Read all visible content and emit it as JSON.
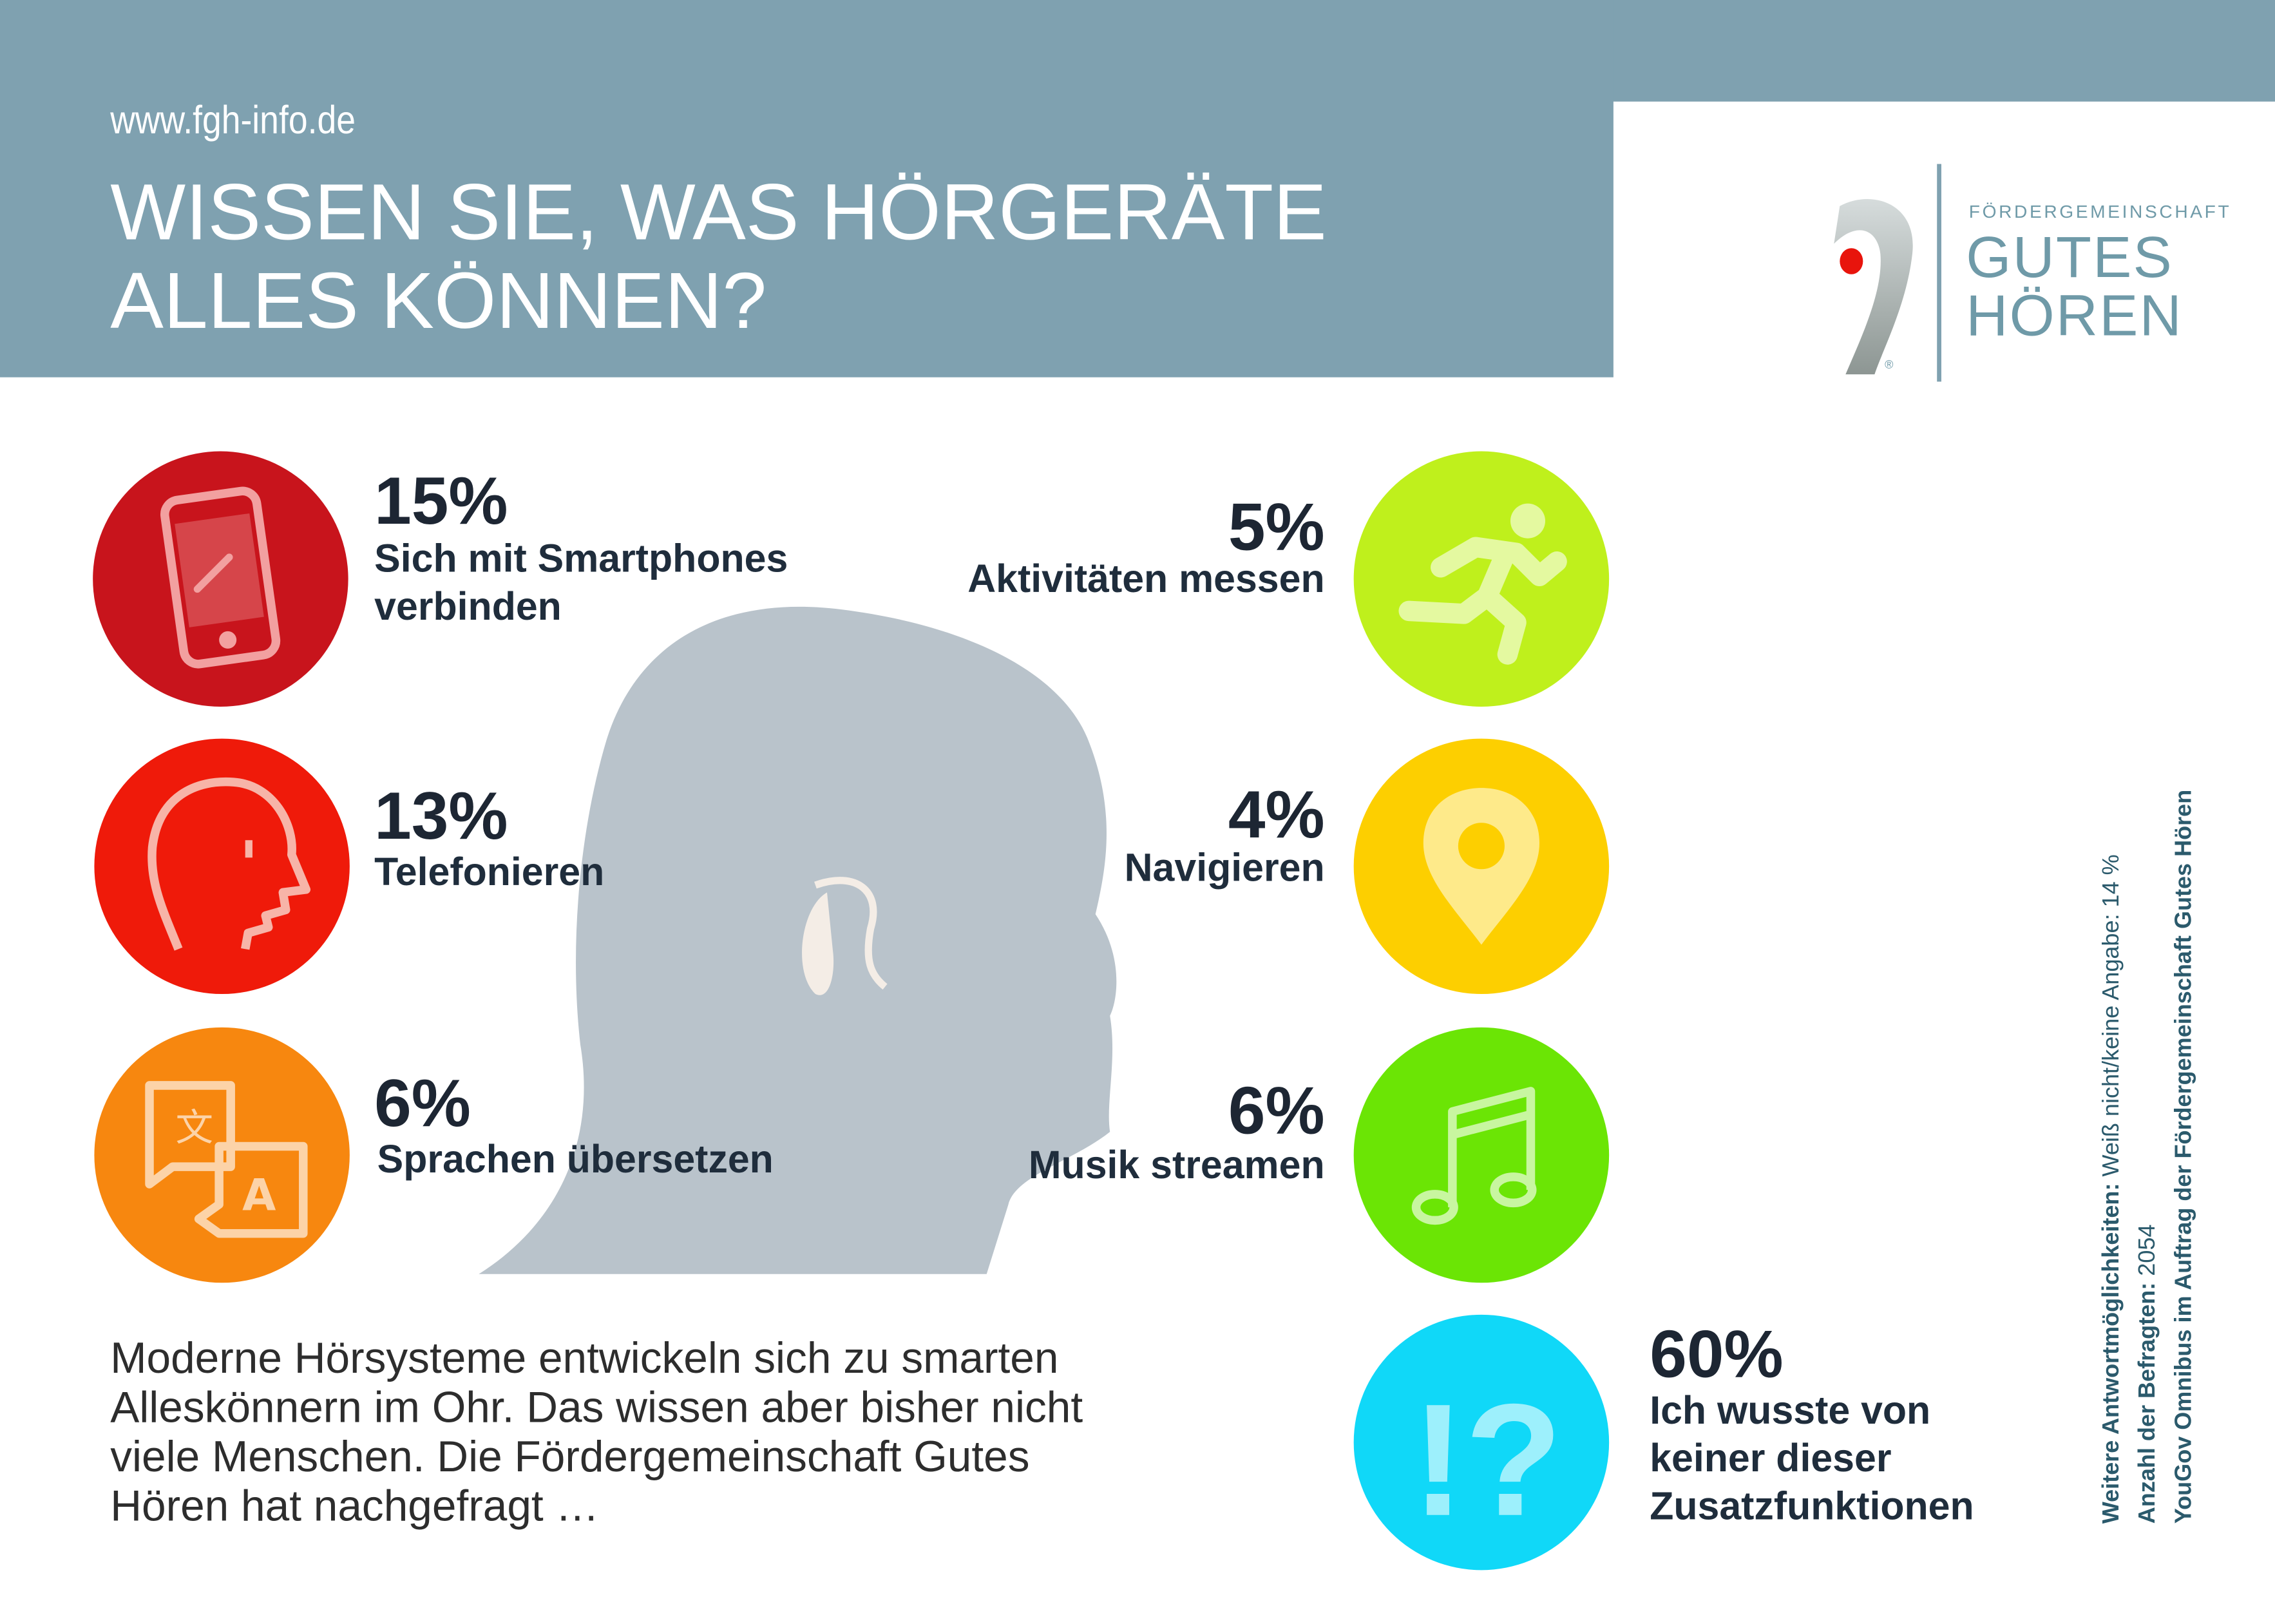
{
  "header": {
    "url": "www.fgh-info.de",
    "title_line1": "WISSEN SIE, WAS HÖRGERÄTE",
    "title_line2": "ALLES KÖNNEN?"
  },
  "logo": {
    "small": "FÖRDERGEMEINSCHAFT",
    "line1": "GUTES",
    "line2": "HÖREN",
    "registered": "®"
  },
  "items": [
    {
      "percent": "15%",
      "label_line1": "Sich mit Smartphones",
      "label_line2": "verbinden",
      "icon": "smartphone-link-icon",
      "color": "#c8141c"
    },
    {
      "percent": "13%",
      "label_line1": "Telefonieren",
      "label_line2": "",
      "icon": "head-profile-icon",
      "color": "#ef1a0a"
    },
    {
      "percent": "6%",
      "label_line1": "Sprachen übersetzen",
      "label_line2": "",
      "icon": "translate-icon",
      "color": "#f7870f"
    },
    {
      "percent": "5%",
      "label_line1": "Aktivitäten messen",
      "label_line2": "",
      "icon": "running-icon",
      "color": "#bff01c"
    },
    {
      "percent": "4%",
      "label_line1": "Navigieren",
      "label_line2": "",
      "icon": "map-pin-icon",
      "color": "#fdcf00"
    },
    {
      "percent": "6%",
      "label_line1": "Musik streamen",
      "label_line2": "",
      "icon": "music-note-icon",
      "color": "#6be505"
    },
    {
      "percent": "60%",
      "label_line1": "Ich wusste von",
      "label_line2": "keiner dieser",
      "label_line3": "Zusatzfunktionen",
      "icon": "exclamation-question-icon",
      "color": "#10d8f8"
    }
  ],
  "paragraph": {
    "line1": "Moderne Hörsysteme entwickeln sich zu smarten",
    "line2": "Alleskönnern im Ohr. Das wissen aber bisher nicht",
    "line3": "viele Menschen. Die Fördergemeinschaft Gutes",
    "line4": "Hören hat nachgefragt …"
  },
  "footnote": {
    "l1_bold": "Weitere Antwortmöglichkeiten:",
    "l1_rest": " Weiß nicht/keine Angabe: 14 %",
    "l2_bold": "Anzahl der Befragten:",
    "l2_rest": " 2054",
    "l3_bold": "YouGov Omnibus im Auftrag der Fördergemeinschaft Gutes Hören"
  }
}
